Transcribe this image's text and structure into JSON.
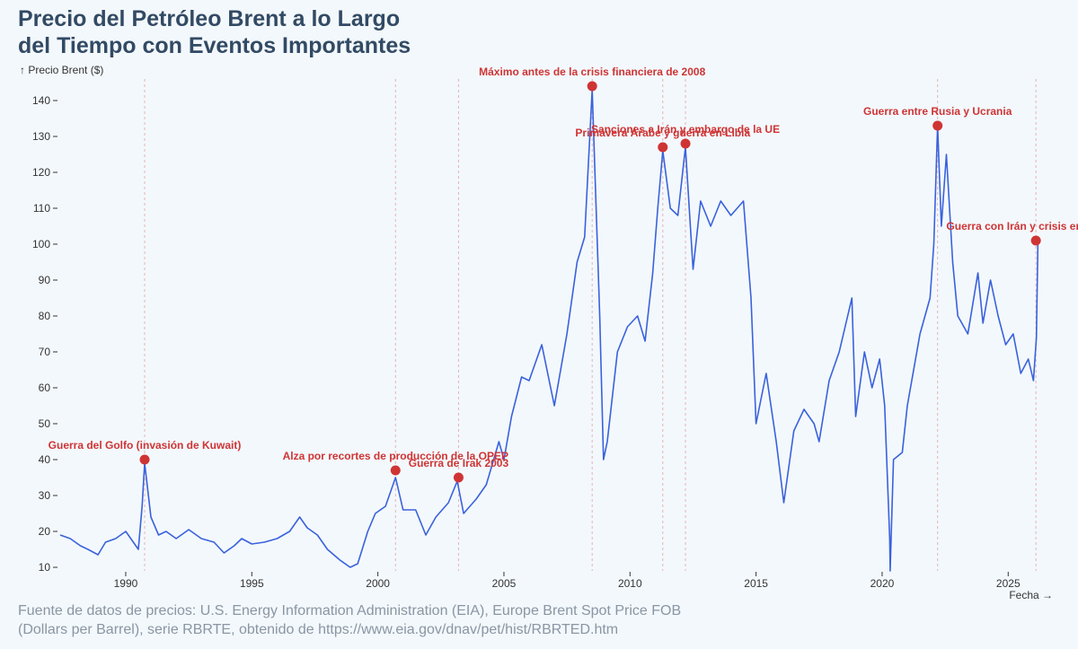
{
  "title_lines": [
    "Precio del Petróleo Brent a lo Largo",
    "del Tiempo con Eventos Importantes"
  ],
  "source_lines": [
    "Fuente de datos de precios: U.S. Energy Information Administration (EIA), Europe Brent Spot Price FOB",
    "(Dollars per Barrel), serie RBRTE, obtenido de https://www.eia.gov/dnav/pet/hist/RBRTED.htm"
  ],
  "colors": {
    "line": "#3a62dc",
    "event": "#cf3434",
    "text": "#324a64",
    "background": "#f3f8fc"
  },
  "chart_data": {
    "type": "line",
    "title": "Precio del Petróleo Brent a lo Largo del Tiempo con Eventos Importantes",
    "xlabel": "Fecha →",
    "ylabel": "↑ Precio Brent ($)",
    "xlim": [
      1987.4,
      2026.7
    ],
    "ylim": [
      9,
      146
    ],
    "x_ticks": [
      1990,
      1995,
      2000,
      2005,
      2010,
      2015,
      2020,
      2025
    ],
    "y_ticks": [
      10,
      20,
      30,
      40,
      50,
      60,
      70,
      80,
      90,
      100,
      110,
      120,
      130,
      140
    ],
    "series": [
      {
        "name": "Precio Brent",
        "points": [
          [
            1987.4,
            19
          ],
          [
            1987.8,
            18
          ],
          [
            1988.2,
            16
          ],
          [
            1988.5,
            15
          ],
          [
            1988.9,
            13.5
          ],
          [
            1989.2,
            17
          ],
          [
            1989.6,
            18
          ],
          [
            1990.0,
            20
          ],
          [
            1990.3,
            17
          ],
          [
            1990.5,
            15
          ],
          [
            1990.65,
            27
          ],
          [
            1990.75,
            39
          ],
          [
            1990.85,
            33
          ],
          [
            1991.0,
            24
          ],
          [
            1991.3,
            19
          ],
          [
            1991.6,
            20
          ],
          [
            1992.0,
            18
          ],
          [
            1992.5,
            20.5
          ],
          [
            1993.0,
            18
          ],
          [
            1993.5,
            17
          ],
          [
            1993.9,
            14
          ],
          [
            1994.3,
            16
          ],
          [
            1994.6,
            18
          ],
          [
            1995.0,
            16.5
          ],
          [
            1995.5,
            17
          ],
          [
            1996.0,
            18
          ],
          [
            1996.5,
            20
          ],
          [
            1996.9,
            24
          ],
          [
            1997.2,
            21
          ],
          [
            1997.6,
            19
          ],
          [
            1998.0,
            15
          ],
          [
            1998.5,
            12
          ],
          [
            1998.9,
            10
          ],
          [
            1999.2,
            11
          ],
          [
            1999.6,
            20
          ],
          [
            1999.9,
            25
          ],
          [
            2000.3,
            27
          ],
          [
            2000.7,
            35
          ],
          [
            2001.0,
            26
          ],
          [
            2001.5,
            26
          ],
          [
            2001.9,
            19
          ],
          [
            2002.3,
            24
          ],
          [
            2002.8,
            28
          ],
          [
            2003.15,
            34
          ],
          [
            2003.4,
            25
          ],
          [
            2003.9,
            29
          ],
          [
            2004.3,
            33
          ],
          [
            2004.8,
            45
          ],
          [
            2005.0,
            40
          ],
          [
            2005.3,
            52
          ],
          [
            2005.7,
            63
          ],
          [
            2006.0,
            62
          ],
          [
            2006.5,
            72
          ],
          [
            2007.0,
            55
          ],
          [
            2007.5,
            75
          ],
          [
            2007.9,
            95
          ],
          [
            2008.2,
            102
          ],
          [
            2008.5,
            143
          ],
          [
            2008.8,
            80
          ],
          [
            2008.95,
            40
          ],
          [
            2009.1,
            45
          ],
          [
            2009.5,
            70
          ],
          [
            2009.9,
            77
          ],
          [
            2010.3,
            80
          ],
          [
            2010.6,
            73
          ],
          [
            2010.9,
            92
          ],
          [
            2011.1,
            110
          ],
          [
            2011.3,
            126
          ],
          [
            2011.6,
            110
          ],
          [
            2011.9,
            108
          ],
          [
            2012.2,
            127
          ],
          [
            2012.5,
            93
          ],
          [
            2012.8,
            112
          ],
          [
            2013.2,
            105
          ],
          [
            2013.6,
            112
          ],
          [
            2014.0,
            108
          ],
          [
            2014.5,
            112
          ],
          [
            2014.8,
            85
          ],
          [
            2015.0,
            50
          ],
          [
            2015.4,
            64
          ],
          [
            2015.8,
            45
          ],
          [
            2016.1,
            28
          ],
          [
            2016.5,
            48
          ],
          [
            2016.9,
            54
          ],
          [
            2017.3,
            50
          ],
          [
            2017.5,
            45
          ],
          [
            2017.9,
            62
          ],
          [
            2018.3,
            70
          ],
          [
            2018.8,
            85
          ],
          [
            2018.95,
            52
          ],
          [
            2019.3,
            70
          ],
          [
            2019.6,
            60
          ],
          [
            2019.9,
            68
          ],
          [
            2020.1,
            55
          ],
          [
            2020.3,
            18
          ],
          [
            2020.32,
            9
          ],
          [
            2020.45,
            40
          ],
          [
            2020.8,
            42
          ],
          [
            2021.0,
            55
          ],
          [
            2021.5,
            75
          ],
          [
            2021.9,
            85
          ],
          [
            2022.05,
            100
          ],
          [
            2022.2,
            133
          ],
          [
            2022.35,
            105
          ],
          [
            2022.55,
            125
          ],
          [
            2022.8,
            95
          ],
          [
            2023.0,
            80
          ],
          [
            2023.4,
            75
          ],
          [
            2023.8,
            92
          ],
          [
            2024.0,
            78
          ],
          [
            2024.3,
            90
          ],
          [
            2024.6,
            80
          ],
          [
            2024.9,
            72
          ],
          [
            2025.2,
            75
          ],
          [
            2025.5,
            64
          ],
          [
            2025.8,
            68
          ],
          [
            2026.0,
            62
          ],
          [
            2026.12,
            74
          ],
          [
            2026.18,
            101
          ]
        ]
      }
    ],
    "events": [
      {
        "label": "Guerra del Golfo (invasión de Kuwait)",
        "x": 1990.75,
        "y": 40,
        "anchor": "middle",
        "label_y": 43
      },
      {
        "label": "Alza por recortes de producción de la OPEP",
        "x": 2000.7,
        "y": 37,
        "anchor": "middle",
        "label_y": 40
      },
      {
        "label": "Guerra de Irak 2003",
        "x": 2003.2,
        "y": 35,
        "anchor": "middle",
        "label_y": 38
      },
      {
        "label": "Máximo antes de la crisis financiera de 2008",
        "x": 2008.5,
        "y": 144,
        "anchor": "middle",
        "label_y": 147
      },
      {
        "label": "Primavera Árabe y guerra en Libia",
        "x": 2011.3,
        "y": 127,
        "anchor": "middle",
        "label_y": 130
      },
      {
        "label": "Sanciones a Irán y embargo de la UE",
        "x": 2012.2,
        "y": 128,
        "anchor": "middle",
        "label_y": 131
      },
      {
        "label": "Guerra entre Rusia y Ucrania",
        "x": 2022.2,
        "y": 133,
        "anchor": "middle",
        "label_y": 136
      },
      {
        "label": "Guerra con Irán y crisis en Ormuz",
        "x": 2026.1,
        "y": 101,
        "anchor": "end",
        "label_y": 104
      }
    ]
  }
}
